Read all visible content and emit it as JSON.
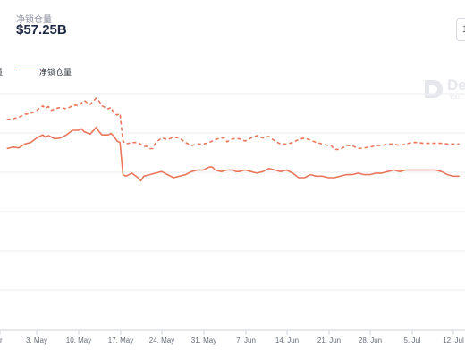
{
  "header": {
    "metric_label": "净锁仓量",
    "metric_value": "$57.25B",
    "corner_button_text": "1"
  },
  "legend": {
    "left_partial_text": "量",
    "series_label": "净锁仓量"
  },
  "watermark": {
    "text": "De",
    "sub": "You"
  },
  "colors": {
    "series": "#e8775c",
    "grid": "#eceef2",
    "axis": "#cfd3da"
  },
  "chart_data": {
    "type": "line",
    "title": "",
    "xlabel": "",
    "ylabel": "",
    "x_tick_labels": [
      "r",
      "3. May",
      "10. May",
      "17. May",
      "24. May",
      "31. May",
      "7. Jun",
      "14. Jun",
      "21. Jun",
      "28. Jun",
      "5. Jul",
      "12. Jul"
    ],
    "x_tick_days": [
      -1,
      4,
      11,
      18,
      25,
      32,
      39,
      46,
      53,
      60,
      67,
      74
    ],
    "x_domain_days": [
      -1,
      75
    ],
    "x_reference": "May 2021",
    "y_axis_labels_visible": false,
    "grid": true,
    "legend_position": "top-left",
    "series": [
      {
        "line_style": "dashed",
        "points": [
          [
            -1,
            94
          ],
          [
            0,
            93
          ],
          [
            1,
            91
          ],
          [
            2,
            87
          ],
          [
            3,
            86
          ],
          [
            4,
            82
          ],
          [
            5,
            76
          ],
          [
            5.5,
            79
          ],
          [
            6,
            77
          ],
          [
            6.5,
            82
          ],
          [
            7,
            80
          ],
          [
            8,
            78
          ],
          [
            9,
            80
          ],
          [
            10,
            76
          ],
          [
            10.5,
            75
          ],
          [
            11,
            76
          ],
          [
            12,
            69
          ],
          [
            12.5,
            72
          ],
          [
            13,
            74
          ],
          [
            14,
            66
          ],
          [
            14.5,
            70
          ],
          [
            15,
            76
          ],
          [
            16,
            80
          ],
          [
            16.5,
            78
          ],
          [
            17,
            86
          ],
          [
            17.5,
            88
          ],
          [
            18,
            86
          ],
          [
            18.5,
            122
          ],
          [
            19,
            126
          ],
          [
            20,
            124
          ],
          [
            21,
            124
          ],
          [
            22,
            129
          ],
          [
            22.5,
            129
          ],
          [
            23,
            132
          ],
          [
            23.5,
            132
          ],
          [
            24,
            124
          ],
          [
            25,
            118
          ],
          [
            26,
            120
          ],
          [
            27,
            117
          ],
          [
            28,
            118
          ],
          [
            29,
            124
          ],
          [
            30,
            128
          ],
          [
            31,
            126
          ],
          [
            32,
            126
          ],
          [
            33,
            124
          ],
          [
            34,
            120
          ],
          [
            35,
            118
          ],
          [
            35.5,
            118
          ],
          [
            36,
            123
          ],
          [
            37,
            119
          ],
          [
            38,
            119
          ],
          [
            39,
            122
          ],
          [
            40,
            118
          ],
          [
            41,
            115
          ],
          [
            42,
            118
          ],
          [
            43,
            116
          ],
          [
            44,
            122
          ],
          [
            45,
            126
          ],
          [
            46,
            126
          ],
          [
            47,
            124
          ],
          [
            48,
            120
          ],
          [
            49,
            118
          ],
          [
            50,
            121
          ],
          [
            51,
            124
          ],
          [
            52,
            126
          ],
          [
            53,
            128
          ],
          [
            53.5,
            128
          ],
          [
            54,
            133
          ],
          [
            55,
            133
          ],
          [
            56,
            128
          ],
          [
            57,
            128
          ],
          [
            58,
            132
          ],
          [
            59,
            131
          ],
          [
            60,
            130
          ],
          [
            61,
            128
          ],
          [
            62,
            128
          ],
          [
            63,
            126
          ],
          [
            64,
            126
          ],
          [
            65,
            128
          ],
          [
            66,
            126
          ],
          [
            67,
            124
          ],
          [
            68,
            124
          ],
          [
            69,
            125
          ],
          [
            70,
            125
          ],
          [
            71,
            125
          ],
          [
            72,
            125
          ],
          [
            73,
            126
          ],
          [
            74,
            126
          ],
          [
            75,
            126
          ]
        ]
      },
      {
        "name": "净锁仓量",
        "line_style": "solid",
        "points": [
          [
            -1,
            132
          ],
          [
            0,
            130
          ],
          [
            1,
            131
          ],
          [
            2,
            126
          ],
          [
            3,
            124
          ],
          [
            4,
            118
          ],
          [
            5,
            114
          ],
          [
            5.5,
            117
          ],
          [
            6,
            115
          ],
          [
            6.5,
            117
          ],
          [
            7,
            119
          ],
          [
            8,
            118
          ],
          [
            9,
            114
          ],
          [
            10,
            108
          ],
          [
            11,
            108
          ],
          [
            11.5,
            106
          ],
          [
            12,
            110
          ],
          [
            13,
            113
          ],
          [
            14,
            104
          ],
          [
            14.5,
            110
          ],
          [
            15,
            114
          ],
          [
            16,
            114
          ],
          [
            16.5,
            112
          ],
          [
            17,
            116
          ],
          [
            17.5,
            122
          ],
          [
            18,
            124
          ],
          [
            18.5,
            166
          ],
          [
            19,
            168
          ],
          [
            20,
            164
          ],
          [
            21,
            170
          ],
          [
            21.5,
            174
          ],
          [
            22,
            168
          ],
          [
            23,
            166
          ],
          [
            24,
            164
          ],
          [
            25,
            162
          ],
          [
            26,
            166
          ],
          [
            27,
            170
          ],
          [
            28,
            168
          ],
          [
            29,
            166
          ],
          [
            30,
            162
          ],
          [
            31,
            160
          ],
          [
            32,
            160
          ],
          [
            33,
            156
          ],
          [
            33.5,
            156
          ],
          [
            34,
            160
          ],
          [
            35,
            162
          ],
          [
            36,
            160
          ],
          [
            37,
            160
          ],
          [
            37.5,
            162
          ],
          [
            38,
            162
          ],
          [
            39,
            160
          ],
          [
            40,
            162
          ],
          [
            41,
            164
          ],
          [
            42,
            162
          ],
          [
            43,
            158
          ],
          [
            44,
            160
          ],
          [
            45,
            162
          ],
          [
            46,
            160
          ],
          [
            47,
            164
          ],
          [
            48,
            170
          ],
          [
            49,
            170
          ],
          [
            50,
            166
          ],
          [
            51,
            168
          ],
          [
            52,
            168
          ],
          [
            53,
            170
          ],
          [
            54,
            170
          ],
          [
            55,
            168
          ],
          [
            56,
            166
          ],
          [
            57,
            166
          ],
          [
            58,
            164
          ],
          [
            59,
            166
          ],
          [
            60,
            166
          ],
          [
            61,
            164
          ],
          [
            62,
            164
          ],
          [
            63,
            162
          ],
          [
            64,
            160
          ],
          [
            65,
            162
          ],
          [
            66,
            160
          ],
          [
            67,
            160
          ],
          [
            68,
            160
          ],
          [
            69,
            160
          ],
          [
            70,
            160
          ],
          [
            71,
            160
          ],
          [
            72,
            162
          ],
          [
            73,
            166
          ],
          [
            74,
            168
          ],
          [
            75,
            168
          ]
        ]
      }
    ]
  }
}
